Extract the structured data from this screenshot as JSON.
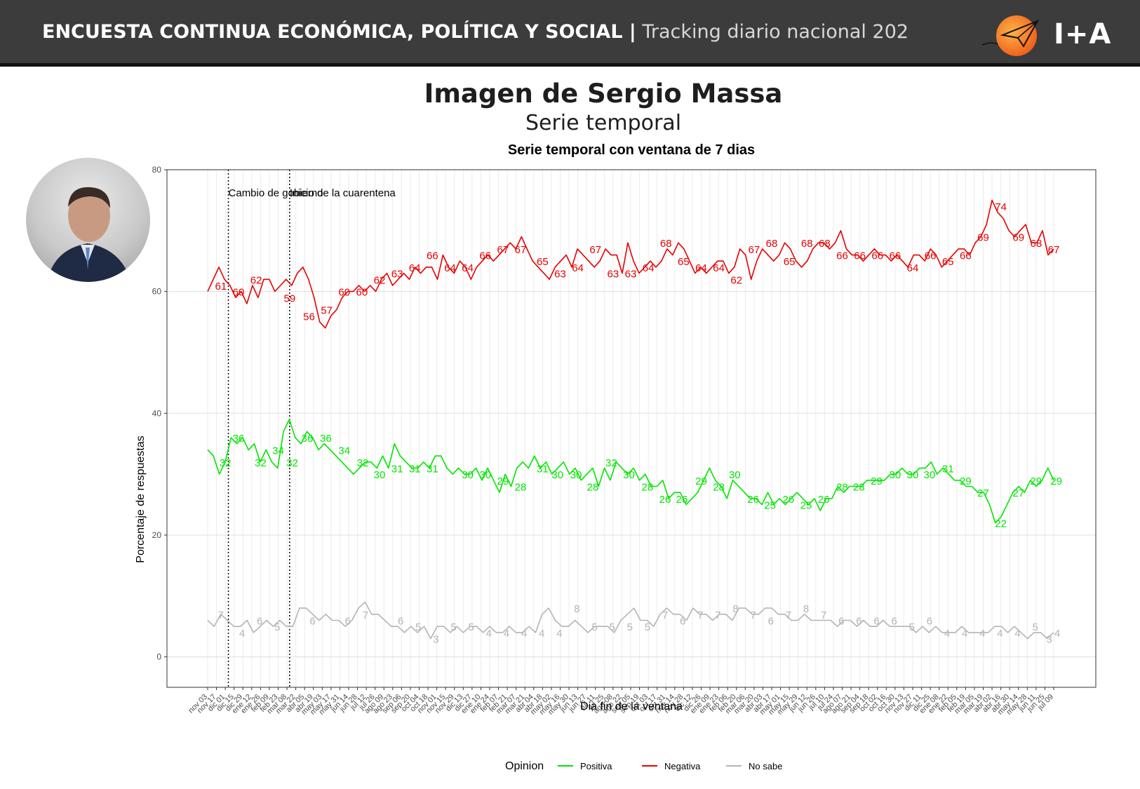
{
  "header": {
    "title_bold": "ENCUESTA CONTINUA ECONÓMICA, POLÍTICA Y SOCIAL |",
    "title_light": " Tracking diario nacional 202",
    "logo_text": "I+A"
  },
  "page": {
    "title": "Imagen de Sergio Massa",
    "subtitle": "Serie temporal",
    "photo_alt": "Sergio Massa"
  },
  "colors": {
    "positiva": "#00e600",
    "negativa": "#e60000",
    "no_sabe": "#b4b4b4",
    "header_bg": "#3c3c3c"
  },
  "chart_data": {
    "type": "line",
    "title": "Serie temporal con ventana de 7 dias",
    "xlabel": "Dia fin de la ventana",
    "ylabel": "Porcentaje de respuestas",
    "ylim": [
      -5,
      80
    ],
    "yticks": [
      0,
      20,
      40,
      60,
      80
    ],
    "grid": true,
    "legend_title": "Opinion",
    "legend_position": "bottom",
    "x_tick_labels": [
      "nov 03",
      "nov 17",
      "dic 01",
      "dic 15",
      "dic 29",
      "ene 12",
      "ene 26",
      "feb 09",
      "feb 23",
      "mar 08",
      "mar 22",
      "abr 05",
      "abr 19",
      "may 03",
      "may 17",
      "may 31",
      "jun 14",
      "jun 28",
      "jul 12",
      "jul 26",
      "ago 09",
      "ago 23",
      "sep 06",
      "sep 20",
      "oct 04",
      "oct 18",
      "nov 01",
      "nov 15",
      "nov 29",
      "dic 13",
      "dic 27",
      "ene 10",
      "ene 24",
      "feb 07",
      "feb 21",
      "mar 07",
      "mar 21",
      "abr 04",
      "abr 18",
      "may 02",
      "may 16",
      "may 30",
      "jun 13",
      "jun 27",
      "jul 11",
      "jul 25",
      "ago 08",
      "ago 22",
      "sep 05",
      "sep 19",
      "oct 03",
      "oct 17",
      "oct 31",
      "nov 14",
      "nov 28",
      "dic 12",
      "dic 26",
      "ene 09",
      "ene 23",
      "feb 06",
      "feb 20",
      "mar 06",
      "mar 20",
      "abr 03",
      "abr 17",
      "may 01",
      "may 15",
      "may 29",
      "jun 12",
      "jun 26",
      "jul 10",
      "jul 24",
      "ago 07",
      "ago 21",
      "sep 04",
      "sep 18",
      "oct 02",
      "oct 16",
      "oct 30",
      "nov 13",
      "nov 27",
      "dic 11",
      "dic 25",
      "ene 08",
      "ene 22",
      "feb 05",
      "feb 19",
      "mar 05",
      "mar 19",
      "abr 02",
      "abr 16",
      "abr 30",
      "may 14",
      "may 28",
      "jun 11",
      "jun 25",
      "jul 09"
    ],
    "vlines": [
      {
        "tick": 2.35,
        "label": "Cambio de gobierno"
      },
      {
        "tick": 9.3,
        "label": "Inicio de la cuarentena"
      }
    ],
    "series": [
      {
        "name": "Positiva",
        "values": [
          34,
          33,
          30,
          32,
          36,
          35,
          36,
          34,
          35,
          32,
          34,
          32,
          31,
          37,
          39,
          36,
          35,
          37,
          36,
          34,
          35,
          34,
          33,
          32,
          31,
          30,
          31,
          32,
          32,
          31,
          33,
          31,
          35,
          33,
          32,
          31,
          31,
          32,
          31,
          33,
          33,
          31,
          30,
          31,
          30,
          30,
          31,
          29,
          31,
          29,
          27,
          30,
          28,
          31,
          32,
          31,
          33,
          31,
          32,
          30,
          31,
          32,
          30,
          31,
          29,
          30,
          31,
          28,
          31,
          29,
          32,
          31,
          30,
          31,
          29,
          30,
          28,
          28,
          29,
          26,
          27,
          27,
          25,
          26,
          27,
          29,
          31,
          29,
          28,
          26,
          29,
          28,
          27,
          26,
          26,
          25,
          27,
          25,
          26,
          25,
          26,
          27,
          26,
          25,
          26,
          24,
          26,
          26,
          28,
          27,
          28,
          28,
          28,
          29,
          29,
          29,
          29,
          30,
          30,
          31,
          30,
          30,
          31,
          31,
          32,
          30,
          31,
          30,
          29,
          29,
          28,
          28,
          27,
          27,
          25,
          22,
          23,
          25,
          27,
          28,
          27,
          29,
          28,
          29,
          31,
          29
        ],
        "labels": [
          [
            2.0,
            32
          ],
          [
            3.5,
            36
          ],
          [
            6.0,
            32
          ],
          [
            8.0,
            34
          ],
          [
            9.6,
            32
          ],
          [
            11.3,
            36
          ],
          [
            13.4,
            36
          ],
          [
            15.5,
            34
          ],
          [
            17.6,
            32
          ],
          [
            19.5,
            30
          ],
          [
            21.5,
            31
          ],
          [
            23.5,
            31
          ],
          [
            25.5,
            31
          ],
          [
            29.5,
            30
          ],
          [
            31.5,
            30
          ],
          [
            33.5,
            29
          ],
          [
            35.5,
            28
          ],
          [
            38.0,
            31
          ],
          [
            39.7,
            30
          ],
          [
            41.8,
            30
          ],
          [
            43.7,
            28
          ],
          [
            45.8,
            32
          ],
          [
            47.8,
            30
          ],
          [
            49.9,
            28
          ],
          [
            51.9,
            26
          ],
          [
            53.8,
            26
          ],
          [
            56.0,
            29
          ],
          [
            58.0,
            28
          ],
          [
            59.8,
            30
          ],
          [
            61.9,
            26
          ],
          [
            63.8,
            25
          ],
          [
            65.9,
            26
          ],
          [
            67.9,
            25
          ],
          [
            69.9,
            26
          ],
          [
            72.0,
            28
          ],
          [
            73.9,
            28
          ],
          [
            75.9,
            29
          ],
          [
            78.0,
            30
          ],
          [
            80.0,
            30
          ],
          [
            81.9,
            30
          ],
          [
            84.0,
            31
          ],
          [
            86.0,
            29
          ],
          [
            88.0,
            27
          ],
          [
            90.0,
            22
          ],
          [
            92.0,
            27
          ],
          [
            94.0,
            29
          ],
          [
            96.3,
            29
          ]
        ]
      },
      {
        "name": "Negativa",
        "values": [
          60,
          62,
          64,
          62,
          61,
          59,
          60,
          58,
          61,
          59,
          62,
          62,
          60,
          61,
          62,
          61,
          63,
          64,
          62,
          59,
          55,
          54,
          56,
          57,
          59,
          60,
          60,
          61,
          60,
          61,
          60,
          62,
          63,
          61,
          62,
          63,
          62,
          64,
          63,
          64,
          64,
          62,
          66,
          64,
          63,
          65,
          64,
          62,
          64,
          65,
          66,
          65,
          66,
          67,
          68,
          67,
          69,
          67,
          65,
          64,
          63,
          62,
          64,
          65,
          66,
          64,
          67,
          66,
          65,
          64,
          65,
          67,
          66,
          66,
          63,
          68,
          65,
          63,
          64,
          65,
          64,
          65,
          67,
          66,
          68,
          67,
          65,
          63,
          64,
          63,
          64,
          65,
          65,
          63,
          64,
          67,
          66,
          62,
          65,
          67,
          66,
          65,
          66,
          68,
          67,
          65,
          64,
          65,
          67,
          68,
          68,
          67,
          68,
          70,
          67,
          66,
          66,
          65,
          66,
          67,
          66,
          66,
          65,
          66,
          65,
          64,
          66,
          66,
          65,
          67,
          66,
          64,
          65,
          66,
          67,
          67,
          66,
          68,
          69,
          71,
          75,
          73,
          72,
          70,
          69,
          70,
          71,
          68,
          68,
          70,
          66,
          67
        ],
        "labels": [
          [
            1.5,
            61
          ],
          [
            3.5,
            60
          ],
          [
            5.5,
            62
          ],
          [
            9.3,
            59
          ],
          [
            11.5,
            56
          ],
          [
            13.5,
            57
          ],
          [
            15.5,
            60
          ],
          [
            17.5,
            60
          ],
          [
            19.5,
            62
          ],
          [
            21.5,
            63
          ],
          [
            23.5,
            64
          ],
          [
            25.5,
            66
          ],
          [
            27.5,
            64
          ],
          [
            29.5,
            64
          ],
          [
            31.5,
            66
          ],
          [
            33.5,
            67
          ],
          [
            35.5,
            67
          ],
          [
            38.0,
            65
          ],
          [
            40.0,
            63
          ],
          [
            42.0,
            64
          ],
          [
            44.0,
            67
          ],
          [
            46.0,
            63
          ],
          [
            48.0,
            63
          ],
          [
            50.0,
            64
          ],
          [
            52.0,
            68
          ],
          [
            54.0,
            65
          ],
          [
            56.0,
            64
          ],
          [
            58.0,
            64
          ],
          [
            60.0,
            62
          ],
          [
            62.0,
            67
          ],
          [
            64.0,
            68
          ],
          [
            66.0,
            65
          ],
          [
            68.0,
            68
          ],
          [
            70.0,
            68
          ],
          [
            72.0,
            66
          ],
          [
            74.0,
            66
          ],
          [
            76.0,
            66
          ],
          [
            78.0,
            66
          ],
          [
            80.0,
            64
          ],
          [
            82.0,
            66
          ],
          [
            84.0,
            65
          ],
          [
            86.0,
            66
          ],
          [
            88.0,
            69
          ],
          [
            90.0,
            74
          ],
          [
            92.0,
            69
          ],
          [
            94.0,
            68
          ],
          [
            96.0,
            67
          ]
        ]
      },
      {
        "name": "No sabe",
        "values": [
          6,
          5,
          7,
          6,
          5,
          5,
          6,
          4,
          5,
          6,
          5,
          6,
          5,
          5,
          8,
          8,
          7,
          6,
          7,
          6,
          6,
          5,
          6,
          8,
          9,
          7,
          7,
          6,
          5,
          5,
          4,
          5,
          4,
          5,
          3,
          5,
          5,
          4,
          5,
          4,
          5,
          5,
          4,
          5,
          4,
          4,
          5,
          4,
          4,
          5,
          4,
          7,
          8,
          6,
          5,
          5,
          6,
          5,
          4,
          5,
          5,
          5,
          4,
          6,
          7,
          8,
          6,
          6,
          5,
          7,
          8,
          7,
          7,
          6,
          8,
          7,
          7,
          6,
          7,
          7,
          6,
          8,
          8,
          7,
          7,
          8,
          8,
          7,
          7,
          6,
          6,
          7,
          6,
          6,
          6,
          6,
          5,
          6,
          6,
          5,
          6,
          5,
          5,
          6,
          5,
          5,
          5,
          5,
          4,
          5,
          4,
          5,
          4,
          4,
          4,
          5,
          4,
          4,
          4,
          4,
          5,
          5,
          4,
          5,
          4,
          3,
          4,
          4,
          3,
          4
        ],
        "labels": [
          [
            1.5,
            7
          ],
          [
            3.9,
            4
          ],
          [
            5.9,
            6
          ],
          [
            7.9,
            5
          ],
          [
            11.9,
            6
          ],
          [
            15.9,
            6
          ],
          [
            17.9,
            7
          ],
          [
            21.9,
            6
          ],
          [
            23.9,
            5
          ],
          [
            25.9,
            3
          ],
          [
            27.9,
            5
          ],
          [
            29.9,
            5
          ],
          [
            31.9,
            4
          ],
          [
            33.9,
            4
          ],
          [
            35.9,
            4
          ],
          [
            37.9,
            4
          ],
          [
            39.9,
            4
          ],
          [
            41.9,
            8
          ],
          [
            43.9,
            5
          ],
          [
            45.9,
            5
          ],
          [
            47.9,
            5
          ],
          [
            49.9,
            5
          ],
          [
            51.9,
            7
          ],
          [
            53.9,
            6
          ],
          [
            55.9,
            7
          ],
          [
            57.9,
            7
          ],
          [
            59.9,
            8
          ],
          [
            61.9,
            7
          ],
          [
            63.9,
            6
          ],
          [
            65.9,
            7
          ],
          [
            67.9,
            8
          ],
          [
            69.9,
            7
          ],
          [
            71.9,
            6
          ],
          [
            73.9,
            6
          ],
          [
            75.9,
            6
          ],
          [
            77.9,
            6
          ],
          [
            79.9,
            5
          ],
          [
            81.9,
            6
          ],
          [
            83.9,
            4
          ],
          [
            85.9,
            4
          ],
          [
            87.9,
            4
          ],
          [
            89.9,
            4
          ],
          [
            91.9,
            4
          ],
          [
            93.9,
            5
          ],
          [
            95.5,
            3
          ],
          [
            96.4,
            4
          ]
        ]
      }
    ]
  }
}
